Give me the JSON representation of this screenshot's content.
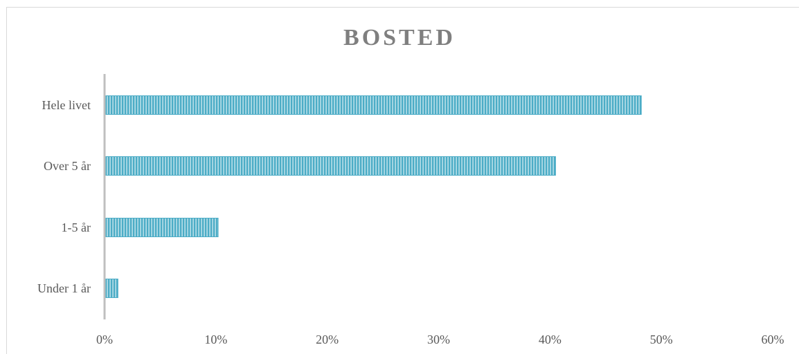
{
  "chart_data": {
    "type": "bar",
    "orientation": "horizontal",
    "title": "BOSTED",
    "xlabel": "",
    "ylabel": "",
    "categories": [
      "Hele livet",
      "Over 5 år",
      "1-5 år",
      "Under 1 år"
    ],
    "values": [
      48.2,
      40.5,
      10.2,
      1.2
    ],
    "value_unit": "percent",
    "xlim": [
      0,
      60
    ],
    "xticks": [
      "0%",
      "10%",
      "20%",
      "30%",
      "40%",
      "50%",
      "60%"
    ],
    "xtick_values": [
      0,
      10,
      20,
      30,
      40,
      50,
      60
    ],
    "grid": false,
    "legend": "none",
    "bar_color": "#4bacc6",
    "bar_stripe_color": "#ffffff",
    "bar_pattern": "vertical stripes",
    "axis_color": "#bfbfbf",
    "text_color": "#595959",
    "title_color": "#7f7f7f"
  }
}
